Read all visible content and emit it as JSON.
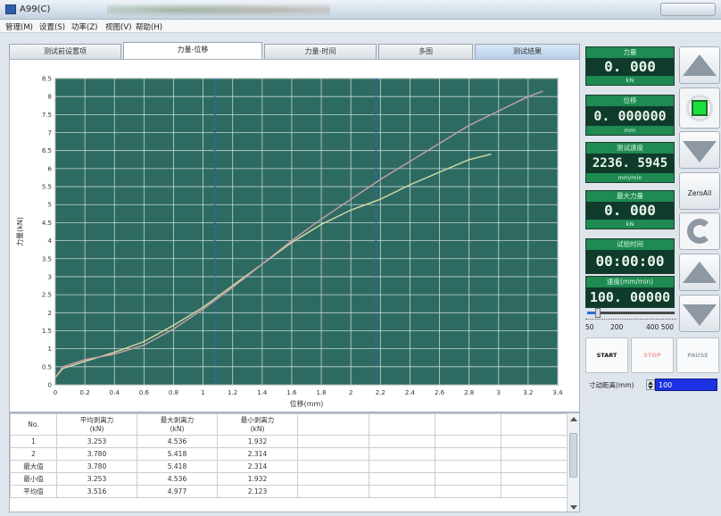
{
  "window": {
    "title": "A99(C)"
  },
  "menu": [
    {
      "label": "管理(M)"
    },
    {
      "label": "设置(S)"
    },
    {
      "label": "功率(Z)"
    },
    {
      "label": "视图(V)"
    },
    {
      "label": "帮助(H)"
    }
  ],
  "tabs": [
    {
      "label": "测试前设置项",
      "active": false
    },
    {
      "label": "力量-位移",
      "active": true
    },
    {
      "label": "力量-时间",
      "active": false
    },
    {
      "label": "多图",
      "active": false
    },
    {
      "label": "测试结果",
      "active": false
    }
  ],
  "chart_data": {
    "type": "line",
    "xlabel": "位移(mm)",
    "ylabel": "力量(kN)",
    "xlim": [
      0,
      3.4
    ],
    "ylim": [
      0,
      8.5
    ],
    "x_ticks": [
      "0",
      "0.2",
      "0.4",
      "0.6",
      "0.8",
      "1",
      "1.2",
      "1.4",
      "1.6",
      "1.8",
      "2",
      "2.2",
      "2.4",
      "2.6",
      "2.8",
      "3",
      "3.2",
      "3.4"
    ],
    "y_ticks": [
      "0",
      "0.5",
      "1",
      "1.5",
      "2",
      "2.5",
      "3",
      "3.5",
      "4",
      "4.5",
      "5",
      "5.5",
      "6",
      "6.5",
      "7",
      "7.5",
      "8",
      "8.5"
    ],
    "grid": true,
    "background_color": "#2d6b62",
    "series": [
      {
        "color": "#d7dba8",
        "x": [
          0,
          0.05,
          0.2,
          0.4,
          0.6,
          0.8,
          1.0,
          1.2,
          1.4,
          1.6,
          1.8,
          2.0,
          2.2,
          2.4,
          2.6,
          2.8,
          2.95
        ],
        "y": [
          0.2,
          0.45,
          0.65,
          0.9,
          1.2,
          1.65,
          2.15,
          2.75,
          3.35,
          3.95,
          4.45,
          4.85,
          5.15,
          5.55,
          5.9,
          6.25,
          6.4
        ]
      },
      {
        "color": "#c9a0a8",
        "x": [
          0,
          0.05,
          0.2,
          0.4,
          0.6,
          0.8,
          1.0,
          1.2,
          1.4,
          1.6,
          1.8,
          2.0,
          2.2,
          2.4,
          2.6,
          2.8,
          3.0,
          3.2,
          3.3
        ],
        "y": [
          0.2,
          0.5,
          0.7,
          0.85,
          1.1,
          1.55,
          2.1,
          2.7,
          3.35,
          4.0,
          4.6,
          5.15,
          5.7,
          6.2,
          6.7,
          7.2,
          7.6,
          8.0,
          8.15
        ]
      }
    ],
    "markers": [
      {
        "x": 1.08,
        "color": "#3a60d8"
      },
      {
        "x": 2.17,
        "color": "#3a60d8"
      }
    ]
  },
  "table": {
    "headers": [
      "No.",
      "平均剥离力\n(kN)",
      "最大剥离力\n(kN)",
      "最小剥离力\n(kN)",
      "",
      "",
      "",
      ""
    ],
    "rows": [
      [
        "1",
        "3.253",
        "4.536",
        "1.932",
        "",
        "",
        "",
        ""
      ],
      [
        "2",
        "3.780",
        "5.418",
        "2.314",
        "",
        "",
        "",
        ""
      ],
      [
        "最大值",
        "3.780",
        "5.418",
        "2.314",
        "",
        "",
        "",
        ""
      ],
      [
        "最小值",
        "3.253",
        "4.536",
        "1.932",
        "",
        "",
        "",
        ""
      ],
      [
        "平均值",
        "3.516",
        "4.977",
        "2.123",
        "",
        "",
        "",
        ""
      ]
    ]
  },
  "readouts": [
    {
      "label": "力量",
      "value": "0. 000",
      "unit": "kN"
    },
    {
      "label": "位移",
      "value": "0. 000000",
      "unit": "mm"
    },
    {
      "label": "测试速度",
      "value": "2236. 5945",
      "unit": "mm/min"
    },
    {
      "label": "最大力量",
      "value": "0. 000",
      "unit": "kN"
    },
    {
      "label": "试验时间",
      "value": "00:00:00",
      "unit": ""
    },
    {
      "label": "速度(mm/min)",
      "value": "100. 00000",
      "unit": ""
    }
  ],
  "controls": {
    "zero_all": "ZeroAll",
    "start": "START",
    "stop": "STOP",
    "pause": "PAUSE",
    "start_color": "#111111",
    "stop_color": "#f2a2a2",
    "pause_color": "#a0a6ad"
  },
  "speed_slider": {
    "labels": [
      "50",
      "200",
      "400 500"
    ],
    "min": 50,
    "max": 500,
    "value": 100
  },
  "jog": {
    "label": "寸动距离(mm)",
    "value": "100"
  }
}
